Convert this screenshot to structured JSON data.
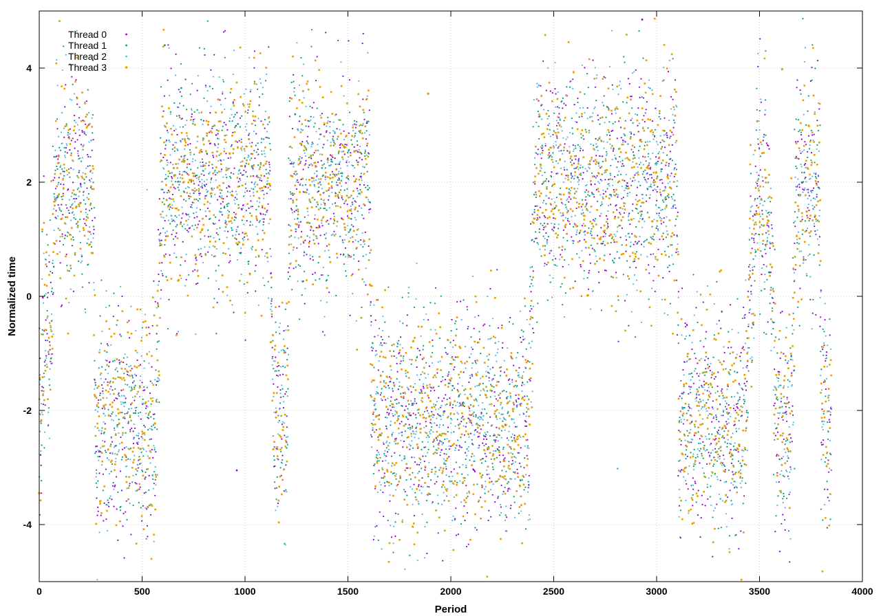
{
  "chart_data": {
    "type": "scatter",
    "xlabel": "Period",
    "ylabel": "Normalized time",
    "xlim": [
      0,
      4000
    ],
    "ylim": [
      -5,
      5
    ],
    "xticks": [
      0,
      500,
      1000,
      1500,
      2000,
      2500,
      3000,
      3500,
      4000
    ],
    "yticks": [
      -4,
      -2,
      0,
      2,
      4
    ],
    "grid": true,
    "legend_position": "top-left",
    "series": [
      {
        "name": "Thread 0",
        "color": "#9400d3",
        "marker": "dot",
        "points_count": 3850,
        "spread": 0.95
      },
      {
        "name": "Thread 1",
        "color": "#009e73",
        "marker": "dot",
        "points_count": 3850,
        "spread": 0.95
      },
      {
        "name": "Thread 2",
        "color": "#56b4e9",
        "marker": "dot",
        "points_count": 3850,
        "spread": 0.95
      },
      {
        "name": "Thread 3",
        "color": "#e69f00",
        "marker": "square",
        "points_count": 3850,
        "spread": 0.95
      }
    ],
    "notable_points": [
      {
        "series": "Thread 0",
        "x": 2930,
        "y": 4.85
      },
      {
        "series": "Thread 1",
        "x": 610,
        "y": 4.4
      },
      {
        "series": "Thread 2",
        "x": 3530,
        "y": 4.3
      },
      {
        "series": "Thread 3",
        "x": 3610,
        "y": 3.98
      },
      {
        "series": "Thread 1",
        "x": 690,
        "y": 3.65
      },
      {
        "series": "Thread 3",
        "x": 1890,
        "y": 3.55
      },
      {
        "series": "Thread 3",
        "x": 2240,
        "y": -3.15
      },
      {
        "series": "Thread 0",
        "x": 960,
        "y": -3.05
      },
      {
        "series": "Thread 3",
        "x": 0,
        "y": -3.45
      },
      {
        "series": "Thread 2",
        "x": 3670,
        "y": -3.02
      },
      {
        "series": "Thread 2",
        "x": 2810,
        "y": -3.02
      }
    ]
  }
}
